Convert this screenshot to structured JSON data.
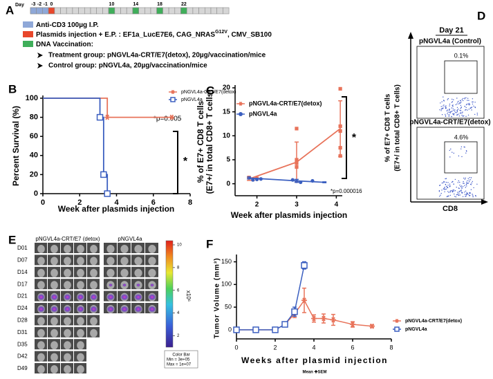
{
  "panels": [
    "A",
    "B",
    "C",
    "D",
    "E",
    "F"
  ],
  "timeline": {
    "title": "Day",
    "range": [
      -3,
      29
    ],
    "days": [
      -3,
      -2,
      -1,
      0,
      10,
      14,
      18,
      22
    ],
    "colors": [
      "#8fa8d8",
      "#8fa8d8",
      "#8fa8d8",
      "#e8472b",
      "#3fae5a",
      "#3fae5a",
      "#3fae5a",
      "#3fae5a"
    ]
  },
  "protocol": {
    "items": [
      {
        "text": "Anti-CD3 100µg I.P.",
        "color": "#8fa8d8"
      },
      {
        "text": "Plasmids injection + E.P. : EF1a_LucE7E6, CAG_NRAS",
        "superscript": "G12V",
        "suffix": ", CMV_SB100",
        "color": "#e8472b"
      },
      {
        "text": "DNA Vaccination:",
        "color": "#3fae5a"
      }
    ],
    "groups": [
      "Treatment group: pNGVL4a-CRT/E7(detox), 20µg/vaccination/mice",
      "Control group: pNGVL4a, 20µg/vaccination/mice"
    ]
  },
  "chart_data": [
    {
      "type": "survival",
      "ylabel": [
        "Percent Survival (%)"
      ],
      "xlabel": "Week after plasmids injection",
      "xlim": [
        0,
        8
      ],
      "xticks": [
        0,
        2,
        4,
        6,
        8
      ],
      "ylim": [
        0,
        100
      ],
      "yticks": [
        0,
        20,
        40,
        60,
        80,
        100
      ],
      "series": [
        {
          "name": "pNGVL4a-CRT/E7(detox)",
          "color": "#e8735a",
          "marker": "star",
          "x": [
            0,
            3.5,
            7
          ],
          "values": [
            100,
            80,
            80
          ]
        },
        {
          "name": "pNGVL4a",
          "color": "#3b5fc0",
          "marker": "square",
          "x": [
            0,
            3.1,
            3.3,
            3.5
          ],
          "values": [
            100,
            80,
            20,
            0
          ]
        }
      ],
      "annotations": [
        "*p=0.005",
        "*"
      ]
    },
    {
      "type": "scatter",
      "ylabel": [
        "% of E7+ CD8 T cells",
        "(E7+/ in total CD8+ T cells)"
      ],
      "xlabel": "Week after plasmids injection",
      "xlim": [
        1.45,
        4.15
      ],
      "xticks": [
        2,
        3,
        4
      ],
      "ylim": [
        -2.5,
        20
      ],
      "yticks": [
        0,
        5,
        10,
        15,
        20
      ],
      "series": [
        {
          "name": "pNGVL4a-CRT/E7(detox)",
          "color": "#e8735a",
          "marker": "star",
          "x": [
            1.8,
            3,
            4.1
          ],
          "values": [
            1.0,
            4.5,
            11.5
          ],
          "errors": [
            0.3,
            4.2,
            5.8
          ]
        },
        {
          "name": "pNGVL4a",
          "color": "#3b5fc0",
          "marker": "circle",
          "x": [
            1.8,
            3,
            3.7
          ],
          "values": [
            1.2,
            0.6,
            0.3
          ],
          "errors": [
            0.2,
            0.3,
            0.1
          ]
        }
      ],
      "points": [
        {
          "color": "#e8735a",
          "marker": "filled-square",
          "x": [
            1.8,
            1.9,
            2.0,
            3,
            3,
            3,
            3,
            4.1,
            4.1,
            4.1,
            4.1,
            4.1
          ],
          "values": [
            1.3,
            0.9,
            1.1,
            11.5,
            5,
            4.3,
            3.5,
            19.8,
            12,
            11,
            7.5,
            5.8
          ]
        },
        {
          "color": "#3b5fc0",
          "marker": "circle",
          "x": [
            1.8,
            1.9,
            2.0,
            2.1,
            2.9,
            3,
            3.1,
            3.4
          ],
          "values": [
            1.2,
            0.8,
            0.9,
            1.0,
            0.8,
            0.5,
            0.3,
            0.6
          ]
        }
      ],
      "annotations": [
        "*",
        "*p=0.000016"
      ]
    },
    {
      "type": "line",
      "ylabel": [
        "Tumor Volume (mm³)"
      ],
      "xlabel": "Weeks after plasmid injection",
      "footnote": "Mean ✚SEM",
      "xlim": [
        0,
        8
      ],
      "xticks": [
        0,
        2,
        4,
        6,
        8
      ],
      "ylim": [
        -20,
        160
      ],
      "yticks": [
        0,
        50,
        100,
        150
      ],
      "series": [
        {
          "name": "pNGVL4a-CRT/E7(detox)",
          "color": "#e8735a",
          "marker": "star",
          "x": [
            0,
            1,
            2,
            2.5,
            3,
            3.5,
            4,
            4.5,
            5,
            6,
            7
          ],
          "values": [
            0,
            0,
            0,
            12,
            35,
            65,
            25,
            25,
            22,
            12,
            8
          ],
          "errors": [
            0,
            0,
            0,
            3,
            8,
            27,
            8,
            10,
            12,
            6,
            3
          ]
        },
        {
          "name": "pNGVL4a",
          "color": "#3b5fc0",
          "marker": "square",
          "x": [
            0,
            1,
            2,
            2.5,
            3,
            3.5
          ],
          "values": [
            0,
            0,
            0,
            12,
            40,
            142
          ],
          "errors": [
            0,
            0,
            0,
            3,
            10,
            8
          ]
        }
      ]
    }
  ],
  "flow": {
    "title": "Day 21",
    "ylabel": [
      "% of E7+ CD8 T cells",
      "(E7+/ in total CD8+ T cells)"
    ],
    "xlabel": "CD8",
    "plots": [
      {
        "label": "pNGVL4a (Control)",
        "gate": "0.1%"
      },
      {
        "label": "pNGVL4a-CRT/E7(detox)",
        "gate": "4.6%"
      }
    ]
  },
  "imaging": {
    "groups": [
      "pNGVL4a-CRT/E7 (detox)",
      "pNGVL4a"
    ],
    "days": [
      "D01",
      "D07",
      "D14",
      "D17",
      "D21",
      "D24",
      "D28",
      "D31",
      "D35",
      "D42",
      "D49"
    ],
    "colorbar": {
      "lim": [
        1,
        10
      ],
      "ticks": [
        2,
        4,
        6,
        8,
        10
      ],
      "unit": "x10⁶",
      "title": "Color Bar",
      "min": "Min = 3e+05",
      "max": "Max = 1e+07"
    }
  }
}
